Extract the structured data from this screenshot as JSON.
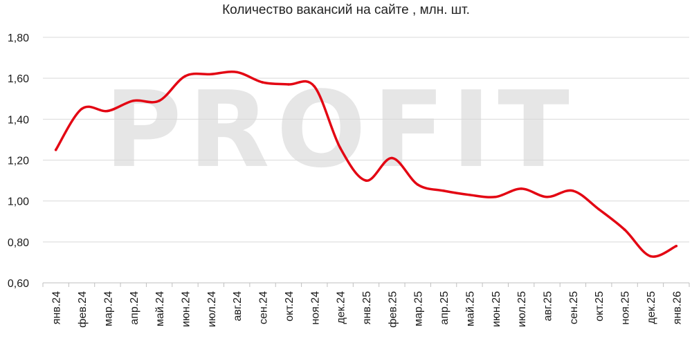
{
  "watermark": "PROFIT",
  "chart_data": {
    "type": "line",
    "title": "Количество вакансий на сайте , млн. шт.",
    "xlabel": "",
    "ylabel": "",
    "ylim": [
      0.6,
      1.8
    ],
    "yticks": [
      "0,60",
      "0,80",
      "1,00",
      "1,20",
      "1,40",
      "1,60",
      "1,80"
    ],
    "grid": true,
    "categories": [
      "янв.24",
      "фев.24",
      "мар.24",
      "апр.24",
      "май.24",
      "июн.24",
      "июл.24",
      "авг.24",
      "сен.24",
      "окт.24",
      "ноя.24",
      "дек.24",
      "янв.25",
      "фев.25",
      "мар.25",
      "апр.25",
      "май.25",
      "июн.25",
      "июл.25",
      "авг.25",
      "сен.25",
      "окт.25",
      "ноя.25",
      "дек.25",
      "янв.26"
    ],
    "series": [
      {
        "color": "#e30613",
        "values": [
          1.25,
          1.45,
          1.44,
          1.49,
          1.49,
          1.61,
          1.62,
          1.63,
          1.58,
          1.57,
          1.56,
          1.26,
          1.1,
          1.21,
          1.08,
          1.05,
          1.03,
          1.02,
          1.06,
          1.02,
          1.05,
          0.96,
          0.86,
          0.73,
          0.78
        ]
      }
    ]
  }
}
